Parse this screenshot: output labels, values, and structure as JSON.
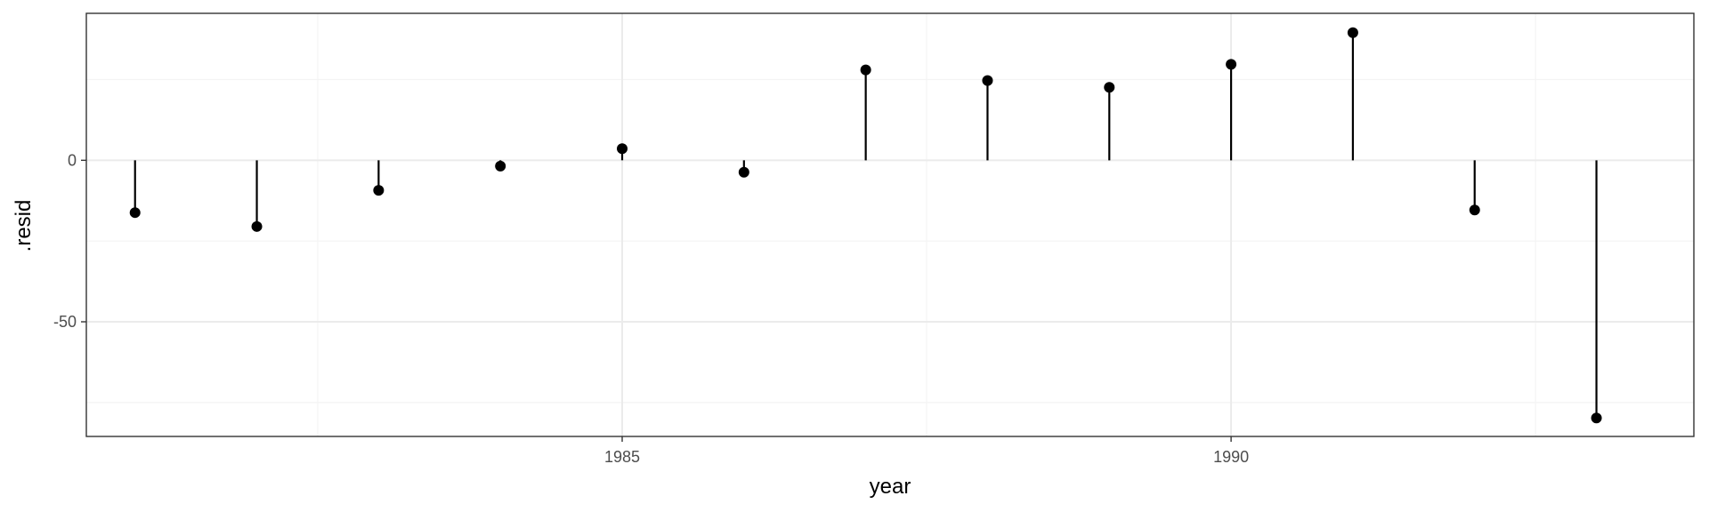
{
  "chart_data": {
    "type": "lollipop",
    "xlabel": "year",
    "ylabel": ".resid",
    "x_ticks": [
      1985,
      1990
    ],
    "y_ticks": [
      -50,
      0
    ],
    "xlim": [
      1980.6,
      1993.8
    ],
    "ylim": [
      -85.5,
      45.5
    ],
    "grid": true,
    "baseline": 0,
    "x": [
      1981,
      1982,
      1983,
      1984,
      1985,
      1986,
      1987,
      1988,
      1989,
      1990,
      1991,
      1992,
      1993
    ],
    "values": [
      -16.2,
      -20.5,
      -9.3,
      -1.8,
      3.6,
      -3.7,
      28.0,
      24.7,
      22.6,
      29.7,
      39.5,
      -15.4,
      -79.8
    ]
  },
  "colors": {
    "panel_border": "#333333",
    "grid_major": "#ebebeb",
    "grid_minor": "#f4f4f4",
    "marks": "#000000"
  }
}
